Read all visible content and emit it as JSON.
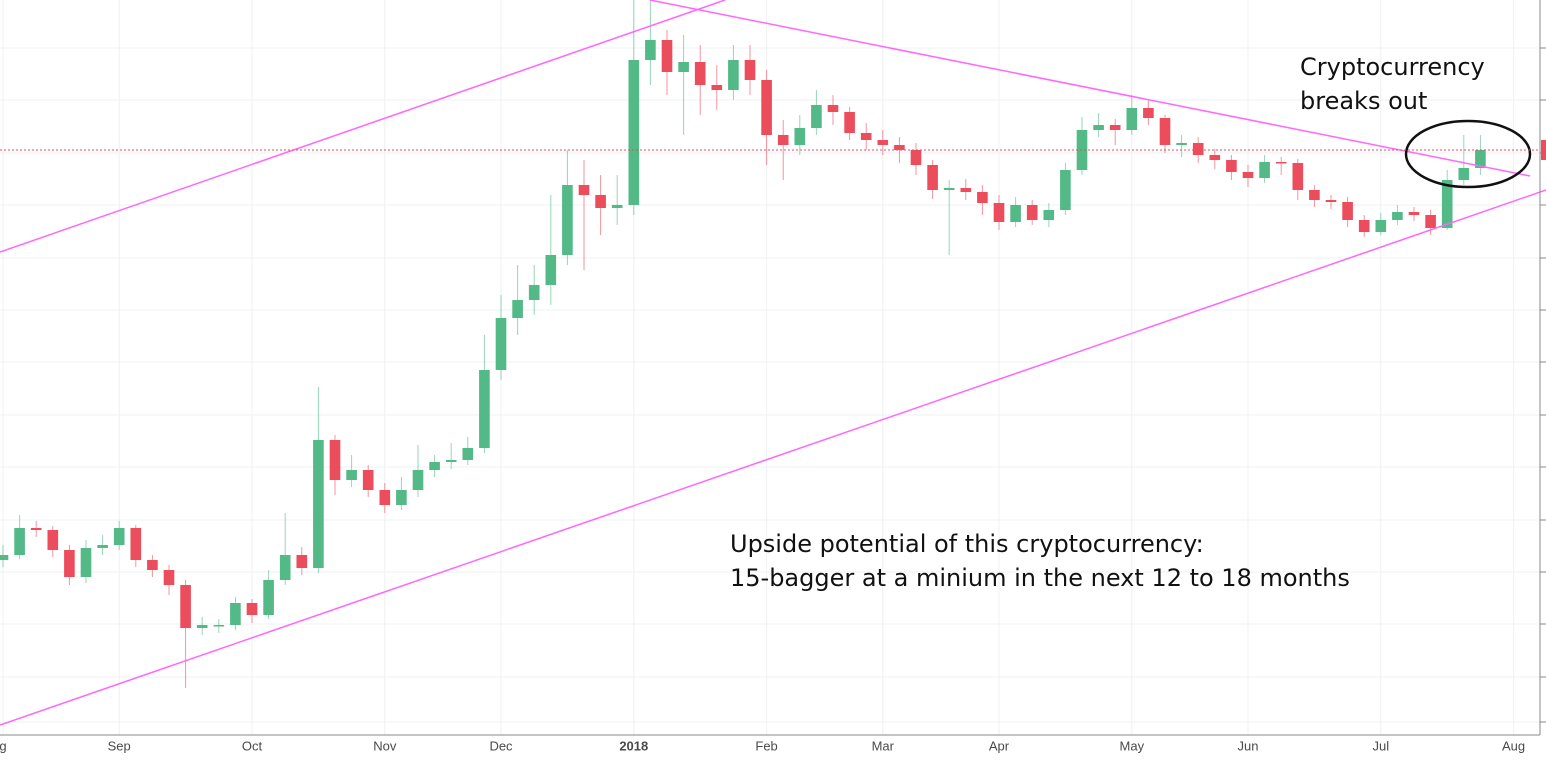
{
  "chart_data": {
    "type": "candlestick",
    "categories": [
      "g",
      null,
      null,
      null,
      null,
      null,
      null,
      "Sep",
      null,
      null,
      null,
      null,
      null,
      null,
      null,
      "Oct",
      null,
      null,
      null,
      null,
      null,
      null,
      null,
      "Nov",
      null,
      null,
      null,
      null,
      null,
      null,
      "Dec",
      null,
      null,
      null,
      null,
      null,
      null,
      null,
      "2018",
      null,
      null,
      null,
      null,
      null,
      null,
      null,
      "Feb",
      null,
      null,
      null,
      null,
      null,
      null,
      "Mar",
      null,
      null,
      null,
      null,
      null,
      null,
      "Apr",
      null,
      null,
      null,
      null,
      null,
      null,
      null,
      "May",
      null,
      null,
      null,
      null,
      null,
      null,
      "Jun",
      null,
      null,
      null,
      null,
      null,
      null,
      null,
      "Jul",
      null,
      null,
      null,
      null,
      null,
      null,
      null,
      "Aug"
    ],
    "open": [
      175,
      180,
      207,
      205,
      185,
      158,
      187,
      190,
      207,
      175,
      165,
      150,
      107,
      110,
      110,
      132,
      120,
      155,
      180,
      167,
      295,
      255,
      265,
      245,
      230,
      245,
      265,
      273,
      275,
      287,
      365,
      417,
      435,
      450,
      480,
      550,
      540,
      527,
      530,
      675,
      695,
      663,
      673,
      650,
      645,
      675,
      655,
      600,
      590,
      607,
      630,
      623,
      602,
      595,
      590,
      585,
      570,
      545,
      547,
      543,
      532,
      513,
      530,
      515,
      525,
      565,
      605,
      610,
      605,
      627,
      617,
      590,
      592,
      580,
      575,
      563,
      557,
      573,
      572,
      545,
      535,
      533,
      515,
      503,
      515,
      523,
      520,
      507,
      555,
      567,
      null,
      null
    ],
    "high": [
      190,
      220,
      214,
      209,
      190,
      195,
      200,
      214,
      210,
      180,
      170,
      155,
      118,
      116,
      138,
      136,
      165,
      222,
      188,
      348,
      300,
      280,
      270,
      252,
      258,
      290,
      280,
      292,
      298,
      400,
      440,
      470,
      470,
      540,
      585,
      575,
      560,
      560,
      735,
      735,
      705,
      700,
      690,
      670,
      690,
      690,
      665,
      615,
      620,
      645,
      640,
      628,
      612,
      605,
      598,
      592,
      575,
      555,
      556,
      550,
      540,
      538,
      535,
      532,
      572,
      618,
      622,
      616,
      640,
      635,
      620,
      600,
      598,
      586,
      580,
      570,
      580,
      578,
      576,
      550,
      540,
      538,
      520,
      522,
      530,
      528,
      525,
      565,
      600,
      600,
      null,
      null
    ],
    "low": [
      168,
      176,
      198,
      178,
      150,
      152,
      180,
      185,
      168,
      158,
      140,
      47,
      100,
      102,
      105,
      112,
      116,
      150,
      160,
      162,
      240,
      248,
      238,
      222,
      225,
      238,
      258,
      266,
      270,
      282,
      355,
      400,
      420,
      430,
      470,
      465,
      500,
      510,
      520,
      650,
      640,
      600,
      620,
      625,
      635,
      640,
      570,
      555,
      580,
      600,
      610,
      595,
      585,
      580,
      572,
      560,
      536,
      480,
      535,
      520,
      505,
      508,
      510,
      508,
      520,
      560,
      598,
      590,
      600,
      610,
      582,
      578,
      572,
      566,
      555,
      548,
      552,
      560,
      535,
      528,
      526,
      508,
      498,
      500,
      510,
      514,
      500,
      505,
      550,
      560,
      null,
      null
    ],
    "close": [
      180,
      207,
      205,
      185,
      158,
      187,
      190,
      207,
      175,
      165,
      150,
      107,
      110,
      110,
      132,
      120,
      155,
      180,
      167,
      295,
      255,
      265,
      245,
      230,
      245,
      265,
      273,
      275,
      287,
      365,
      417,
      435,
      450,
      480,
      550,
      540,
      527,
      530,
      675,
      695,
      663,
      673,
      650,
      645,
      675,
      655,
      600,
      590,
      607,
      630,
      623,
      602,
      595,
      590,
      585,
      570,
      545,
      547,
      543,
      532,
      513,
      530,
      515,
      525,
      565,
      605,
      610,
      605,
      627,
      617,
      590,
      592,
      580,
      575,
      563,
      557,
      573,
      572,
      545,
      535,
      533,
      515,
      503,
      515,
      523,
      520,
      507,
      555,
      567,
      585,
      null,
      null
    ],
    "up_color": "#53b987",
    "down_color": "#eb4d5c",
    "ylim": [
      0,
      735
    ],
    "yticks": [
      13,
      58,
      111,
      163,
      215,
      268,
      320,
      373,
      425,
      477,
      530,
      582,
      635,
      687
    ],
    "grid": true,
    "annotations": [
      "Cryptocurrency",
      "breaks out",
      "Upside potential of this cryptocurrency:",
      "15-bagger at a minium in the next 12 to 18 months"
    ]
  }
}
